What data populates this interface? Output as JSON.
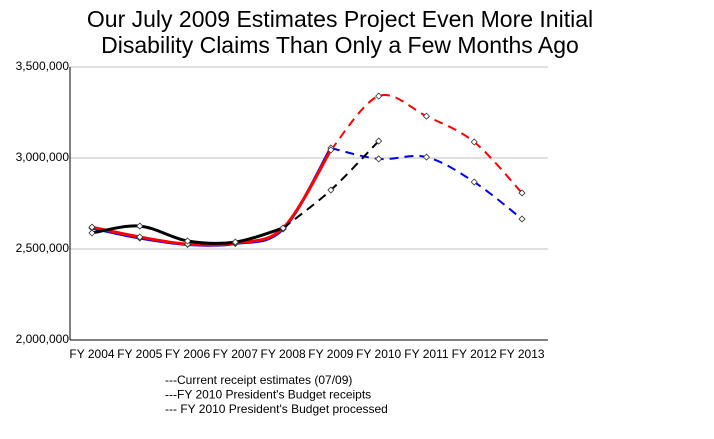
{
  "chart_data": {
    "type": "line",
    "title": [
      "Our July 2009 Estimates Project Even More Initial",
      "Disability Claims Than Only a Few Months Ago"
    ],
    "categories": [
      "FY 2004",
      "FY 2005",
      "FY 2006",
      "FY 2007",
      "FY 2008",
      "FY 2009",
      "FY 2010",
      "FY 2011",
      "FY 2012",
      "FY 2013"
    ],
    "series": [
      {
        "name": "---FY 2010 President's Budget receipts",
        "color": "#0000ff",
        "projected_from": "FY 2009",
        "values": [
          2615000,
          2560000,
          2525000,
          2530000,
          2610000,
          3055000,
          2995000,
          3005000,
          2868000,
          2665000
        ]
      },
      {
        "name": "---Current receipt estimates (07/09)",
        "color": "#ff0000",
        "projected_from": "FY 2009",
        "values": [
          2620000,
          2566000,
          2527000,
          2533000,
          2615000,
          3044000,
          3340000,
          3230000,
          3088000,
          2808000
        ]
      },
      {
        "name": "--- FY 2010 President's Budget processed",
        "color": "#000000",
        "projected_from": "FY 2008",
        "values": [
          2588000,
          2626000,
          2544000,
          2538000,
          2615000,
          2824000,
          3093000,
          null,
          null,
          null
        ]
      }
    ],
    "legend_order": [
      1,
      0,
      2
    ],
    "ylim": [
      2000000,
      3500000
    ],
    "yticks": [
      {
        "value": 2000000,
        "label": "2,000,000"
      },
      {
        "value": 2500000,
        "label": "2,500,000"
      },
      {
        "value": 3000000,
        "label": "3,000,000"
      },
      {
        "value": 3500000,
        "label": "3,500,000"
      }
    ],
    "grid": true
  }
}
